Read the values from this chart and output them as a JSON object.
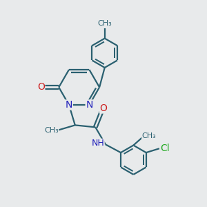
{
  "background_color": "#e8eaeb",
  "bond_color": "#2a6070",
  "bond_width": 1.6,
  "figsize": [
    3.0,
    3.0
  ],
  "dpi": 100,
  "xlim": [
    0,
    10
  ],
  "ylim": [
    0,
    10
  ]
}
